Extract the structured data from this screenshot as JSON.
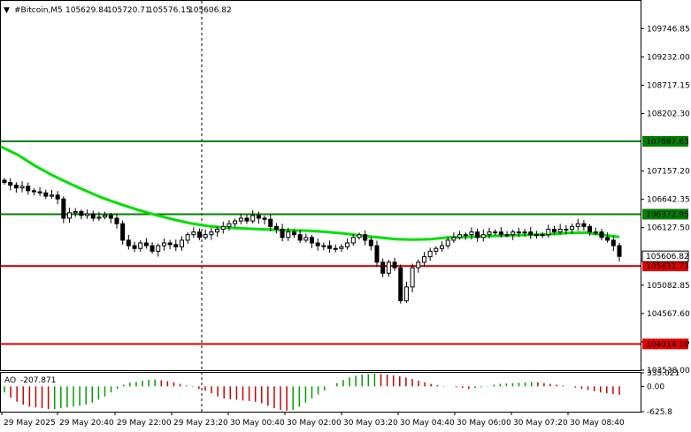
{
  "header": {
    "symbol": "#Bitcoin,M5",
    "open": "105629.84",
    "high": "105720.71",
    "low": "105576.15",
    "close": "105606.82"
  },
  "chart_data": [
    {
      "type": "candlestick",
      "title": "#Bitcoin,M5",
      "ylim": [
        103538,
        110250
      ],
      "y_ticks": [
        "109746.85",
        "109232.00",
        "108717.15",
        "108202.30",
        "107157.20",
        "106642.35",
        "106127.50",
        "105082.85",
        "104567.60",
        "104052.75",
        "103538.00"
      ],
      "x_ticks": [
        "29 May 2025",
        "29 May 20:40",
        "29 May 22:00",
        "29 May 23:20",
        "30 May 00:40",
        "30 May 02:00",
        "30 May 03:20",
        "30 May 04:40",
        "30 May 06:00",
        "30 May 07:20",
        "30 May 08:40"
      ],
      "current_price": "105606.82",
      "levels": [
        {
          "name": "resistance-high",
          "value": "107697.63",
          "color": "#008000"
        },
        {
          "name": "resistance",
          "value": "106372.95",
          "color": "#008000"
        },
        {
          "name": "support",
          "value": "105431.73",
          "color": "#e00000"
        },
        {
          "name": "support-low",
          "value": "104014.10",
          "color": "#e00000"
        }
      ],
      "candle_closes": [
        106950,
        106900,
        106850,
        106880,
        106800,
        106780,
        106760,
        106700,
        106720,
        106650,
        106300,
        106400,
        106420,
        106350,
        106380,
        106300,
        106320,
        106350,
        106300,
        106200,
        105900,
        105800,
        105750,
        105850,
        105800,
        105700,
        105800,
        105850,
        105820,
        105780,
        105900,
        106000,
        106050,
        105950,
        106000,
        106050,
        106100,
        106150,
        106200,
        106250,
        106300,
        106250,
        106350,
        106300,
        106280,
        106150,
        106100,
        105950,
        106050,
        106000,
        105900,
        105950,
        105850,
        105800,
        105800,
        105750,
        105750,
        105780,
        105850,
        105950,
        106000,
        105900,
        105800,
        105500,
        105300,
        105500,
        105400,
        104800,
        105050,
        105400,
        105500,
        105600,
        105700,
        105750,
        105800,
        105900,
        105950,
        106000,
        106000,
        106050,
        105950,
        106000,
        106050,
        106050,
        106000,
        106000,
        106050,
        106050,
        106050,
        106000,
        106000,
        106000,
        106100,
        106050,
        106100,
        106100,
        106150,
        106200,
        106150,
        106050,
        106050,
        105950,
        105900,
        105800,
        105606
      ],
      "moving_average": {
        "color": "#00e000",
        "values": [
          107600,
          107450,
          107250,
          107080,
          106930,
          106790,
          106660,
          106550,
          106450,
          106360,
          106280,
          106210,
          106160,
          106130,
          106115,
          106100,
          106090,
          106080,
          106070,
          106050,
          106020,
          105980,
          105950,
          105920,
          105910,
          105920,
          105950,
          105960,
          105970,
          105980,
          105990,
          106000,
          106010,
          106030,
          106040,
          106000,
          105960
        ]
      },
      "oscillator": {
        "name": "AO",
        "value": "-207.871",
        "y_ticks": [
          "335.021",
          "0.00",
          "-625.8"
        ],
        "ylim": [
          -625.8,
          335.021
        ],
        "values": [
          -150,
          -280,
          -380,
          -450,
          -500,
          -520,
          -540,
          -560,
          -560,
          -540,
          -520,
          -500,
          -480,
          -450,
          -400,
          -330,
          -250,
          -150,
          -60,
          40,
          90,
          110,
          140,
          160,
          170,
          150,
          130,
          100,
          60,
          20,
          -10,
          -60,
          -110,
          -170,
          -250,
          -300,
          -320,
          -330,
          -350,
          -360,
          -380,
          -420,
          -480,
          -540,
          -580,
          -600,
          -580,
          -500,
          -400,
          -300,
          -200,
          -100,
          0,
          80,
          160,
          220,
          260,
          290,
          300,
          310,
          305,
          290,
          270,
          250,
          220,
          180,
          140,
          100,
          60,
          30,
          10,
          0,
          -20,
          -40,
          -60,
          -40,
          -20,
          10,
          40,
          60,
          70,
          80,
          90,
          100,
          110,
          100,
          80,
          60,
          40,
          20,
          0,
          -30,
          -60,
          -90,
          -120,
          -150,
          -170,
          -190,
          -207.871
        ]
      }
    }
  ],
  "colors": {
    "background": "#ffffff",
    "candle_up": "#000000",
    "candle_down": "#000000",
    "ao_up": "#00a000",
    "ao_down": "#d00000",
    "current_price_bg": "#ffffff"
  }
}
